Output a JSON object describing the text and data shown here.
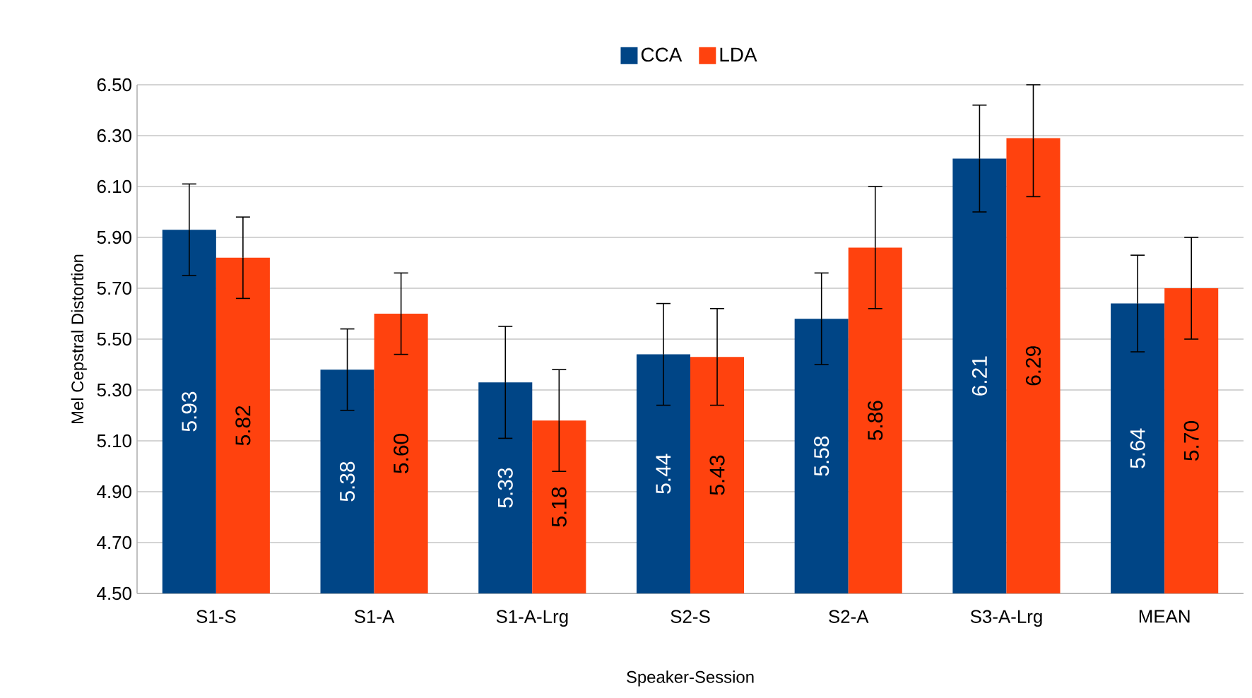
{
  "chart_data": {
    "type": "bar",
    "xlabel": "Speaker-Session",
    "ylabel": "Mel Cepstral Distortion",
    "categories": [
      "S1-S",
      "S1-A",
      "S1-A-Lrg",
      "S2-S",
      "S2-A",
      "S3-A-Lrg",
      "MEAN"
    ],
    "series": [
      {
        "name": "CCA",
        "color": "#004586",
        "values": [
          5.93,
          5.38,
          5.33,
          5.44,
          5.58,
          6.21,
          5.64
        ],
        "value_labels": [
          "5.93",
          "5.38",
          "5.33",
          "5.44",
          "5.58",
          "6.21",
          "5.64"
        ],
        "errors": [
          0.18,
          0.16,
          0.22,
          0.2,
          0.18,
          0.21,
          0.19
        ]
      },
      {
        "name": "LDA",
        "color": "#ff420e",
        "values": [
          5.82,
          5.6,
          5.18,
          5.43,
          5.86,
          6.29,
          5.7
        ],
        "value_labels": [
          "5.82",
          "5.60",
          "5.18",
          "5.43",
          "5.86",
          "6.29",
          "5.70"
        ],
        "errors": [
          0.16,
          0.16,
          0.2,
          0.19,
          0.24,
          [
            6.06,
            6.5
          ],
          0.2
        ]
      }
    ],
    "ylim": [
      4.5,
      6.5
    ],
    "yticks": [
      {
        "value": 4.5,
        "label": "4.50"
      },
      {
        "value": 4.7,
        "label": "4.70"
      },
      {
        "value": 4.9,
        "label": "4.90"
      },
      {
        "value": 5.1,
        "label": "5.10"
      },
      {
        "value": 5.3,
        "label": "5.30"
      },
      {
        "value": 5.5,
        "label": "5.50"
      },
      {
        "value": 5.7,
        "label": "5.70"
      },
      {
        "value": 5.9,
        "label": "5.90"
      },
      {
        "value": 6.1,
        "label": "6.10"
      },
      {
        "value": 6.3,
        "label": "6.30"
      },
      {
        "value": 6.5,
        "label": "6.50"
      }
    ],
    "grid": "y",
    "legend": "top"
  }
}
